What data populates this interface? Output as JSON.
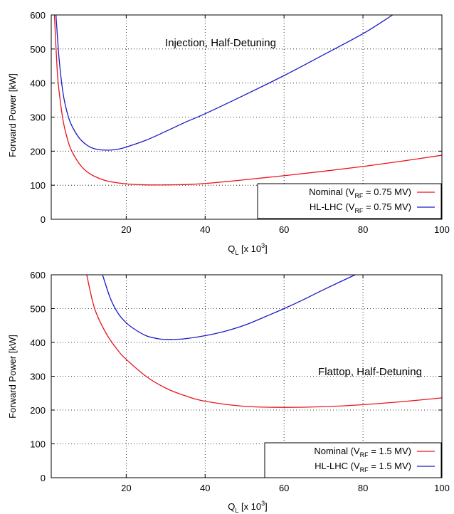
{
  "chart_data": [
    {
      "type": "line",
      "annotation": "Injection, Half-Detuning",
      "xlabel": {
        "base": "Q",
        "sub": "L",
        "suffix": " [x 10",
        "sup": "3",
        "end": "]"
      },
      "ylabel": "Forward Power [kW]",
      "xlim": [
        1,
        100
      ],
      "ylim": [
        0,
        600
      ],
      "xticks": [
        20,
        40,
        60,
        80,
        100
      ],
      "yticks": [
        0,
        100,
        200,
        300,
        400,
        500,
        600
      ],
      "grid": true,
      "legend_position": "bottom-right",
      "series": [
        {
          "name": {
            "pre": "Nominal (V",
            "sub": "RF",
            "post": " = 0.75 MV)"
          },
          "color": "#e8141c",
          "x": [
            1.8,
            2.5,
            3,
            4,
            5,
            6,
            8,
            10,
            12,
            15,
            20,
            25,
            30,
            35,
            40,
            50,
            60,
            70,
            80,
            90,
            100
          ],
          "y": [
            600,
            440,
            375,
            290,
            240,
            205,
            165,
            140,
            126,
            113,
            104,
            101,
            101,
            102,
            105,
            116,
            128,
            141,
            155,
            171,
            188
          ]
        },
        {
          "name": {
            "pre": "HL-LHC (V",
            "sub": "RF",
            "post": " = 0.75 MV)"
          },
          "color": "#1a1ac8",
          "x": [
            2.2,
            3,
            4,
            5,
            6,
            8,
            10,
            12,
            15,
            18,
            20,
            25,
            30,
            35,
            40,
            50,
            60,
            70,
            80,
            87.5
          ],
          "y": [
            600,
            470,
            370,
            315,
            280,
            240,
            218,
            207,
            203,
            206,
            212,
            232,
            258,
            285,
            310,
            365,
            422,
            483,
            545,
            600
          ]
        }
      ]
    },
    {
      "type": "line",
      "annotation": "Flattop, Half-Detuning",
      "xlabel": {
        "base": "Q",
        "sub": "L",
        "suffix": " [x 10",
        "sup": "3",
        "end": "]"
      },
      "ylabel": "Forward Power [kW]",
      "xlim": [
        1,
        100
      ],
      "ylim": [
        0,
        600
      ],
      "xticks": [
        20,
        40,
        60,
        80,
        100
      ],
      "yticks": [
        0,
        100,
        200,
        300,
        400,
        500,
        600
      ],
      "grid": true,
      "legend_position": "bottom-right",
      "series": [
        {
          "name": {
            "pre": "Nominal (V",
            "sub": "RF",
            "post": " = 1.5 MV)"
          },
          "color": "#e8141c",
          "x": [
            10,
            12,
            15,
            18,
            20,
            25,
            30,
            35,
            40,
            50,
            60,
            70,
            80,
            90,
            100
          ],
          "y": [
            600,
            500,
            425,
            375,
            350,
            300,
            265,
            242,
            226,
            211,
            208,
            210,
            216,
            225,
            236
          ]
        },
        {
          "name": {
            "pre": "HL-LHC (V",
            "sub": "RF",
            "post": " = 1.5 MV)"
          },
          "color": "#1a1ac8",
          "x": [
            14,
            16,
            18,
            20,
            22,
            25,
            28,
            30,
            32,
            35,
            40,
            45,
            50,
            55,
            60,
            65,
            70,
            78
          ],
          "y": [
            600,
            530,
            485,
            458,
            440,
            420,
            411,
            409,
            409,
            411,
            420,
            433,
            451,
            475,
            500,
            527,
            556,
            600
          ]
        }
      ]
    }
  ]
}
